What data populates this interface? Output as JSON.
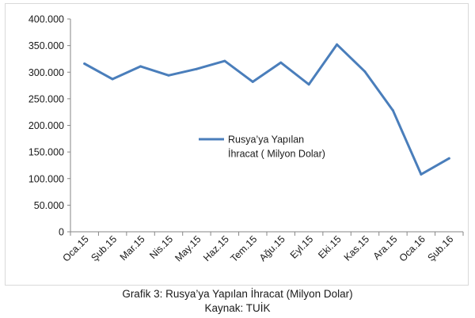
{
  "chart_data": {
    "type": "line",
    "categories": [
      "Oca.15",
      "Şub.15",
      "Mar.15",
      "Nis.15",
      "May.15",
      "Haz.15",
      "Tem.15",
      "Ağu.15",
      "Eyl.15",
      "Eki.15",
      "Kas.15",
      "Ara.15",
      "Oca.16",
      "Şub.16"
    ],
    "series": [
      {
        "name": "Rusya’ya Yapılan İhracat ( Milyon Dolar)",
        "values": [
          316000,
          287000,
          311000,
          294000,
          306000,
          321000,
          282000,
          318000,
          277000,
          352000,
          301000,
          228000,
          108000,
          138000
        ]
      }
    ],
    "ylim": [
      0,
      400000
    ],
    "yticks": [
      "0",
      "50.000",
      "100.000",
      "150.000",
      "200.000",
      "250.000",
      "300.000",
      "350.000",
      "400.000"
    ],
    "yticks_values": [
      0,
      50000,
      100000,
      150000,
      200000,
      250000,
      300000,
      350000,
      400000
    ],
    "legend_lines": [
      "Rusya’ya Yapılan",
      "İhracat ( Milyon Dolar)"
    ],
    "legend_placement": "center-right",
    "grid": false,
    "line_color": "#4a7ebb"
  },
  "caption": {
    "title": "Grafik 3: Rusya’ya Yapılan İhracat (Milyon Dolar)",
    "source": "Kaynak: TUİK"
  }
}
